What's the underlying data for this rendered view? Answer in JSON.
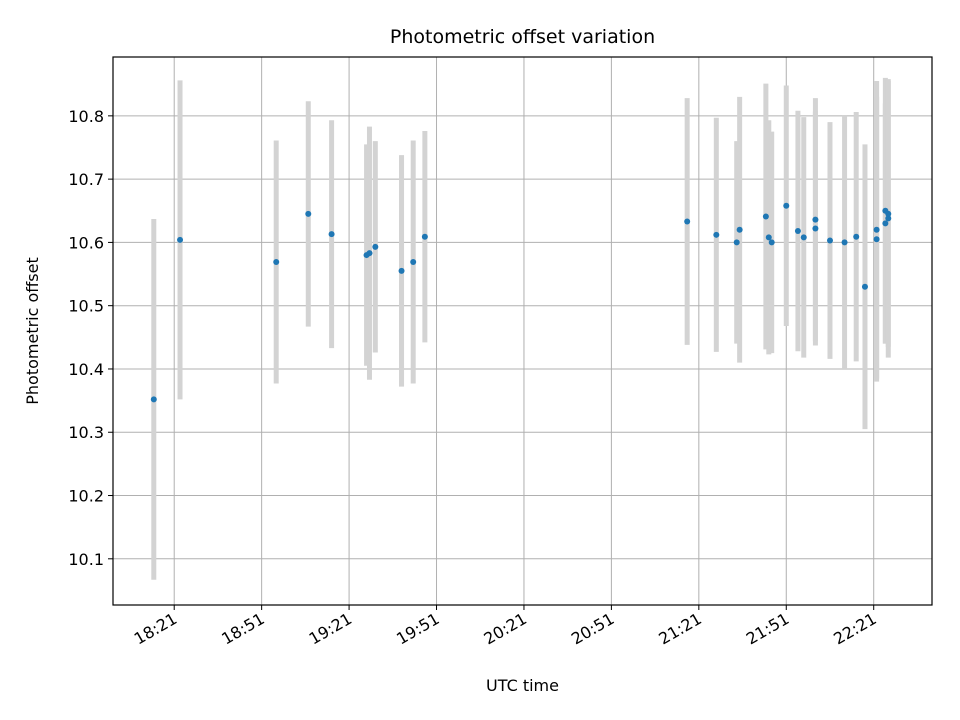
{
  "chart_data": {
    "type": "scatter",
    "title": "Photometric offset variation",
    "xlabel": "UTC time",
    "ylabel": "Photometric offset",
    "x_tick_labels": [
      "18:21",
      "18:51",
      "19:21",
      "19:51",
      "20:21",
      "20:51",
      "21:21",
      "21:51",
      "22:21"
    ],
    "y_tick_labels": [
      "10.1",
      "10.2",
      "10.3",
      "10.4",
      "10.5",
      "10.6",
      "10.7",
      "10.8"
    ],
    "y_ticks": [
      10.1,
      10.2,
      10.3,
      10.4,
      10.5,
      10.6,
      10.7,
      10.8
    ],
    "xlim": [
      "18:00",
      "22:41"
    ],
    "ylim": [
      10.027,
      10.893
    ],
    "grid": true,
    "marker_color": "#1f77b4",
    "errorbar_color": "#d3d3d3",
    "series": [
      {
        "x": [
          "18:14",
          "18:23",
          "18:56",
          "19:07",
          "19:15",
          "19:27",
          "19:28",
          "19:30",
          "19:39",
          "19:43",
          "19:47",
          "21:17",
          "21:27",
          "21:34",
          "21:35",
          "21:44",
          "21:45",
          "21:46",
          "21:51",
          "21:55",
          "21:57",
          "22:01",
          "22:01",
          "22:06",
          "22:11",
          "22:15",
          "22:18",
          "22:22",
          "22:22",
          "22:25",
          "22:25",
          "22:26",
          "22:26"
        ],
        "y": [
          10.352,
          10.604,
          10.569,
          10.645,
          10.613,
          10.58,
          10.583,
          10.593,
          10.555,
          10.569,
          10.609,
          10.633,
          10.612,
          10.6,
          10.62,
          10.641,
          10.608,
          10.6,
          10.658,
          10.618,
          10.608,
          10.636,
          10.622,
          10.603,
          10.6,
          10.609,
          10.53,
          10.605,
          10.62,
          10.65,
          10.63,
          10.638,
          10.645
        ],
        "yerr": [
          0.285,
          0.252,
          0.192,
          0.178,
          0.18,
          0.175,
          0.2,
          0.167,
          0.183,
          0.192,
          0.167,
          0.195,
          0.185,
          0.16,
          0.21,
          0.21,
          0.185,
          0.175,
          0.19,
          0.19,
          0.19,
          0.192,
          0.185,
          0.187,
          0.2,
          0.197,
          0.225,
          0.225,
          0.235,
          0.21,
          0.19,
          0.22,
          0.21
        ]
      }
    ]
  }
}
